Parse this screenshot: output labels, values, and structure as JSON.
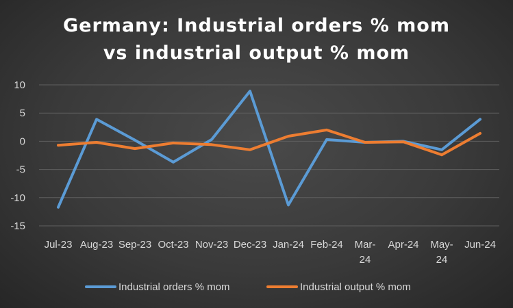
{
  "title_line1": "Germany: Industrial orders % mom",
  "title_line2": "vs industrial output % mom",
  "chart_data": {
    "type": "line",
    "title": "Germany: Industrial orders % mom vs industrial output % mom",
    "categories": [
      [
        "Jul-23"
      ],
      [
        "Aug-23"
      ],
      [
        "Sep-23"
      ],
      [
        "Oct-23"
      ],
      [
        "Nov-23"
      ],
      [
        "Dec-23"
      ],
      [
        "Jan-24"
      ],
      [
        "Feb-24"
      ],
      [
        "Mar-",
        "24"
      ],
      [
        "Apr-24"
      ],
      [
        "May-",
        "24"
      ],
      [
        "Jun-24"
      ]
    ],
    "y_ticks": [
      10,
      5,
      0,
      -5,
      -10,
      -15
    ],
    "ylim": [
      -15,
      10
    ],
    "grid": true,
    "legend_position": "bottom",
    "series": [
      {
        "name": "Industrial orders % mom",
        "color": "#5b9bd5",
        "values": [
          -11.7,
          3.9,
          0.2,
          -3.7,
          0.3,
          8.9,
          -11.3,
          0.3,
          -0.2,
          0.0,
          -1.5,
          3.9
        ]
      },
      {
        "name": "Industrial output % mom",
        "color": "#ed7d31",
        "values": [
          -0.7,
          -0.2,
          -1.3,
          -0.3,
          -0.6,
          -1.5,
          0.9,
          2.0,
          -0.2,
          -0.1,
          -2.4,
          1.4
        ]
      }
    ]
  }
}
